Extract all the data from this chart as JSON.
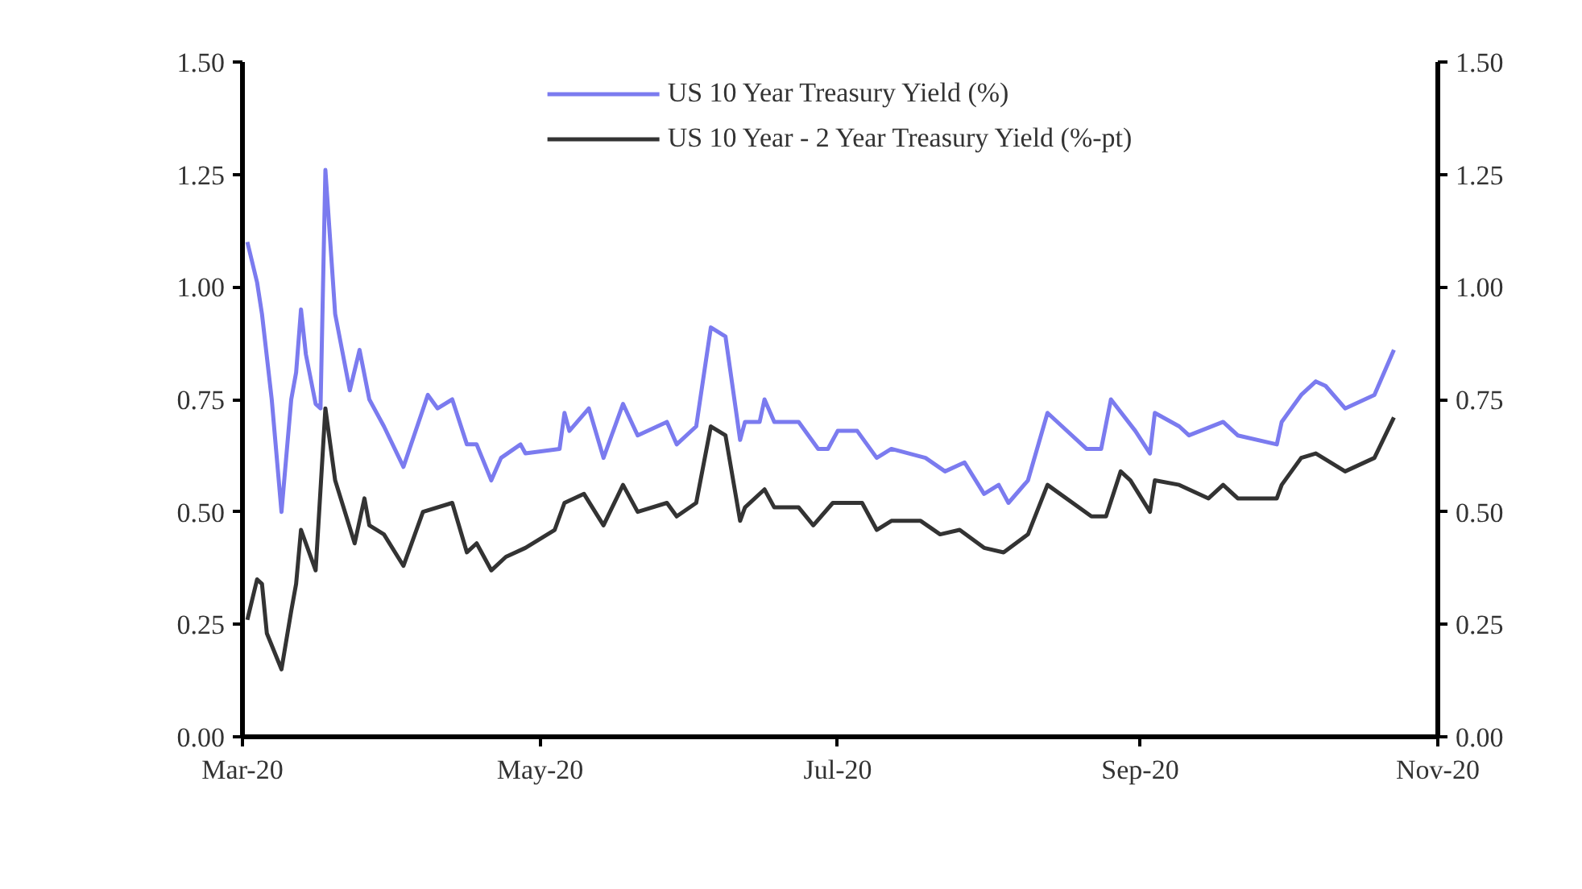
{
  "chart_data": {
    "type": "line",
    "legend": "top",
    "grid": false,
    "xlim": [
      "2020-03-01",
      "2020-11-01"
    ],
    "xticks": [
      {
        "value": "2020-03-01",
        "label": "Mar-20"
      },
      {
        "value": "2020-05-01",
        "label": "May-20"
      },
      {
        "value": "2020-07-01",
        "label": "Jul-20"
      },
      {
        "value": "2020-09-01",
        "label": "Sep-20"
      },
      {
        "value": "2020-11-01",
        "label": "Nov-20"
      }
    ],
    "ylim": [
      0,
      1.5
    ],
    "yticks": [
      {
        "value": 0,
        "label": "0.00"
      },
      {
        "value": 0.25,
        "label": "0.25"
      },
      {
        "value": 0.5,
        "label": "0.50"
      },
      {
        "value": 0.75,
        "label": "0.75"
      },
      {
        "value": 1,
        "label": "1.00"
      },
      {
        "value": 1.25,
        "label": "1.25"
      },
      {
        "value": 1.5,
        "label": "1.50"
      }
    ],
    "y2lim": [
      0,
      1.5
    ],
    "y2ticks": [
      {
        "value": 0,
        "label": "0.00"
      },
      {
        "value": 0.25,
        "label": "0.25"
      },
      {
        "value": 0.5,
        "label": "0.50"
      },
      {
        "value": 0.75,
        "label": "0.75"
      },
      {
        "value": 1,
        "label": "1.00"
      },
      {
        "value": 1.25,
        "label": "1.25"
      },
      {
        "value": 1.5,
        "label": "1.50"
      }
    ],
    "series": [
      {
        "name": "US 10 Year Treasury Yield (%)",
        "color": "#7b7bef",
        "x": [
          "2020-03-02",
          "2020-03-04",
          "2020-03-05",
          "2020-03-07",
          "2020-03-09",
          "2020-03-11",
          "2020-03-12",
          "2020-03-13",
          "2020-03-14",
          "2020-03-16",
          "2020-03-17",
          "2020-03-18",
          "2020-03-20",
          "2020-03-23",
          "2020-03-25",
          "2020-03-27",
          "2020-03-30",
          "2020-04-03",
          "2020-04-08",
          "2020-04-10",
          "2020-04-13",
          "2020-04-16",
          "2020-04-18",
          "2020-04-21",
          "2020-04-23",
          "2020-04-27",
          "2020-04-28",
          "2020-05-05",
          "2020-05-06",
          "2020-05-07",
          "2020-05-11",
          "2020-05-14",
          "2020-05-18",
          "2020-05-21",
          "2020-05-27",
          "2020-05-29",
          "2020-06-02",
          "2020-06-05",
          "2020-06-08",
          "2020-06-11",
          "2020-06-12",
          "2020-06-15",
          "2020-06-16",
          "2020-06-18",
          "2020-06-23",
          "2020-06-27",
          "2020-06-29",
          "2020-07-01",
          "2020-07-05",
          "2020-07-09",
          "2020-07-12",
          "2020-07-19",
          "2020-07-23",
          "2020-07-27",
          "2020-07-31",
          "2020-08-03",
          "2020-08-05",
          "2020-08-09",
          "2020-08-13",
          "2020-08-16",
          "2020-08-21",
          "2020-08-24",
          "2020-08-26",
          "2020-08-31",
          "2020-09-03",
          "2020-09-04",
          "2020-09-09",
          "2020-09-11",
          "2020-09-18",
          "2020-09-21",
          "2020-09-29",
          "2020-09-30",
          "2020-10-04",
          "2020-10-07",
          "2020-10-09",
          "2020-10-13",
          "2020-10-19",
          "2020-10-23"
        ],
        "values": [
          1.1,
          1.01,
          0.94,
          0.75,
          0.5,
          0.75,
          0.81,
          0.95,
          0.85,
          0.74,
          0.73,
          1.26,
          0.94,
          0.77,
          0.86,
          0.75,
          0.69,
          0.6,
          0.76,
          0.73,
          0.75,
          0.65,
          0.65,
          0.57,
          0.62,
          0.65,
          0.63,
          0.64,
          0.72,
          0.68,
          0.73,
          0.62,
          0.74,
          0.67,
          0.7,
          0.65,
          0.69,
          0.91,
          0.89,
          0.66,
          0.7,
          0.7,
          0.75,
          0.7,
          0.7,
          0.64,
          0.64,
          0.68,
          0.68,
          0.62,
          0.64,
          0.62,
          0.59,
          0.61,
          0.54,
          0.56,
          0.52,
          0.57,
          0.72,
          0.69,
          0.64,
          0.64,
          0.75,
          0.68,
          0.63,
          0.72,
          0.69,
          0.67,
          0.7,
          0.67,
          0.65,
          0.7,
          0.76,
          0.79,
          0.78,
          0.73,
          0.76,
          0.86
        ]
      },
      {
        "name": "US 10 Year - 2 Year Treasury Yield (%-pt)",
        "color": "#333333",
        "x": [
          "2020-03-02",
          "2020-03-04",
          "2020-03-05",
          "2020-03-06",
          "2020-03-09",
          "2020-03-11",
          "2020-03-12",
          "2020-03-13",
          "2020-03-16",
          "2020-03-18",
          "2020-03-20",
          "2020-03-24",
          "2020-03-26",
          "2020-03-27",
          "2020-03-30",
          "2020-04-03",
          "2020-04-07",
          "2020-04-13",
          "2020-04-16",
          "2020-04-18",
          "2020-04-21",
          "2020-04-24",
          "2020-04-28",
          "2020-05-04",
          "2020-05-06",
          "2020-05-10",
          "2020-05-14",
          "2020-05-18",
          "2020-05-21",
          "2020-05-27",
          "2020-05-29",
          "2020-06-02",
          "2020-06-05",
          "2020-06-08",
          "2020-06-11",
          "2020-06-12",
          "2020-06-16",
          "2020-06-18",
          "2020-06-23",
          "2020-06-26",
          "2020-06-30",
          "2020-07-06",
          "2020-07-09",
          "2020-07-12",
          "2020-07-18",
          "2020-07-22",
          "2020-07-26",
          "2020-07-31",
          "2020-08-04",
          "2020-08-09",
          "2020-08-13",
          "2020-08-22",
          "2020-08-25",
          "2020-08-28",
          "2020-08-30",
          "2020-09-03",
          "2020-09-04",
          "2020-09-09",
          "2020-09-15",
          "2020-09-18",
          "2020-09-21",
          "2020-09-29",
          "2020-09-30",
          "2020-10-04",
          "2020-10-07",
          "2020-10-13",
          "2020-10-19",
          "2020-10-23"
        ],
        "values": [
          0.26,
          0.35,
          0.34,
          0.23,
          0.15,
          0.28,
          0.34,
          0.46,
          0.37,
          0.73,
          0.57,
          0.43,
          0.53,
          0.47,
          0.45,
          0.38,
          0.5,
          0.52,
          0.41,
          0.43,
          0.37,
          0.4,
          0.42,
          0.46,
          0.52,
          0.54,
          0.47,
          0.56,
          0.5,
          0.52,
          0.49,
          0.52,
          0.69,
          0.67,
          0.48,
          0.51,
          0.55,
          0.51,
          0.51,
          0.47,
          0.52,
          0.52,
          0.46,
          0.48,
          0.48,
          0.45,
          0.46,
          0.42,
          0.41,
          0.45,
          0.56,
          0.49,
          0.49,
          0.59,
          0.57,
          0.5,
          0.57,
          0.56,
          0.53,
          0.56,
          0.53,
          0.53,
          0.56,
          0.62,
          0.63,
          0.59,
          0.62,
          0.71
        ]
      }
    ]
  }
}
